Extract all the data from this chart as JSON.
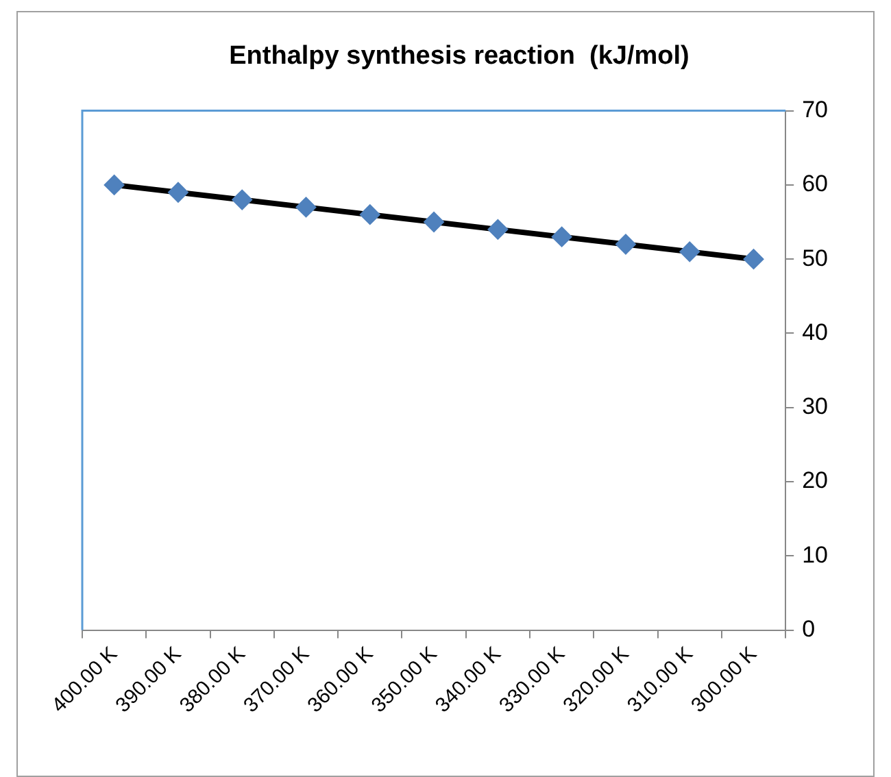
{
  "chart_data": {
    "type": "line",
    "title": "Enthalpy synthesis reaction  (kJ/mol)",
    "categories": [
      "400.00 K",
      "390.00 K",
      "380.00 K",
      "370.00 K",
      "360.00 K",
      "350.00 K",
      "340.00 K",
      "330.00 K",
      "320.00 K",
      "310.00 K",
      "300.00 K"
    ],
    "series": [
      {
        "color": "#000000",
        "values": [
          60,
          59,
          58,
          57,
          56,
          55,
          54,
          53,
          52,
          51,
          50
        ]
      }
    ],
    "marker": "diamond",
    "line_style": "solid",
    "ylim": [
      0,
      70
    ],
    "yticks": [
      0,
      10,
      20,
      30,
      40,
      50,
      60,
      70
    ],
    "grid": false,
    "legend": false
  }
}
